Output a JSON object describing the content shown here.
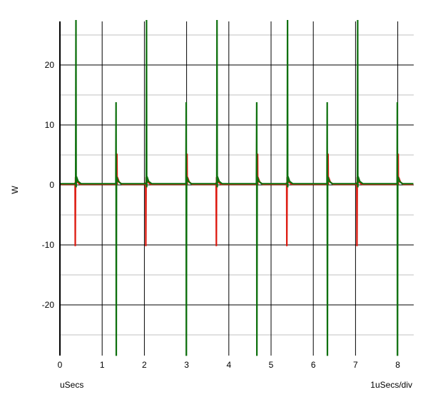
{
  "chart_data": {
    "type": "line",
    "ylabel": "W",
    "xlabel": "uSecs",
    "x_scale_note": "1uSecs/div",
    "xlim": [
      0,
      8.4
    ],
    "ylim": [
      -28.5,
      27.5
    ],
    "x_ticks": [
      "0",
      "1",
      "2",
      "3",
      "4",
      "5",
      "6",
      "7",
      "8"
    ],
    "y_ticks": [
      "20",
      "10",
      "0",
      "-10",
      "-20"
    ],
    "grid": true,
    "series": [
      {
        "color": "#dd1a10",
        "baseline": 0.1,
        "spikes": [
          {
            "x": 0.36,
            "max": 0.4,
            "min": -10.2
          },
          {
            "x": 1.35,
            "max": 5.2,
            "min": 0.0
          },
          {
            "x": 2.03,
            "max": 0.4,
            "min": -10.2
          },
          {
            "x": 3.01,
            "max": 5.2,
            "min": 0.0
          },
          {
            "x": 3.7,
            "max": 0.4,
            "min": -10.2
          },
          {
            "x": 4.68,
            "max": 5.2,
            "min": 0.0
          },
          {
            "x": 5.37,
            "max": 0.4,
            "min": -10.2
          },
          {
            "x": 6.35,
            "max": 5.2,
            "min": 0.0
          },
          {
            "x": 7.03,
            "max": 0.4,
            "min": -10.2
          },
          {
            "x": 8.01,
            "max": 5.2,
            "min": 0.0
          }
        ]
      },
      {
        "color": "#0e700e",
        "baseline": 0.2,
        "spikes": [
          {
            "x": 0.38,
            "max": 27.5,
            "min": -0.4
          },
          {
            "x": 1.33,
            "max": 13.8,
            "min": -28.5
          },
          {
            "x": 2.05,
            "max": 27.5,
            "min": -0.4
          },
          {
            "x": 2.99,
            "max": 13.8,
            "min": -28.5
          },
          {
            "x": 3.72,
            "max": 27.5,
            "min": -0.4
          },
          {
            "x": 4.66,
            "max": 13.8,
            "min": -28.5
          },
          {
            "x": 5.39,
            "max": 27.5,
            "min": -0.4
          },
          {
            "x": 6.33,
            "max": 13.8,
            "min": -28.5
          },
          {
            "x": 7.05,
            "max": 27.5,
            "min": -0.4
          },
          {
            "x": 7.99,
            "max": 13.8,
            "min": -28.5
          }
        ]
      }
    ]
  }
}
